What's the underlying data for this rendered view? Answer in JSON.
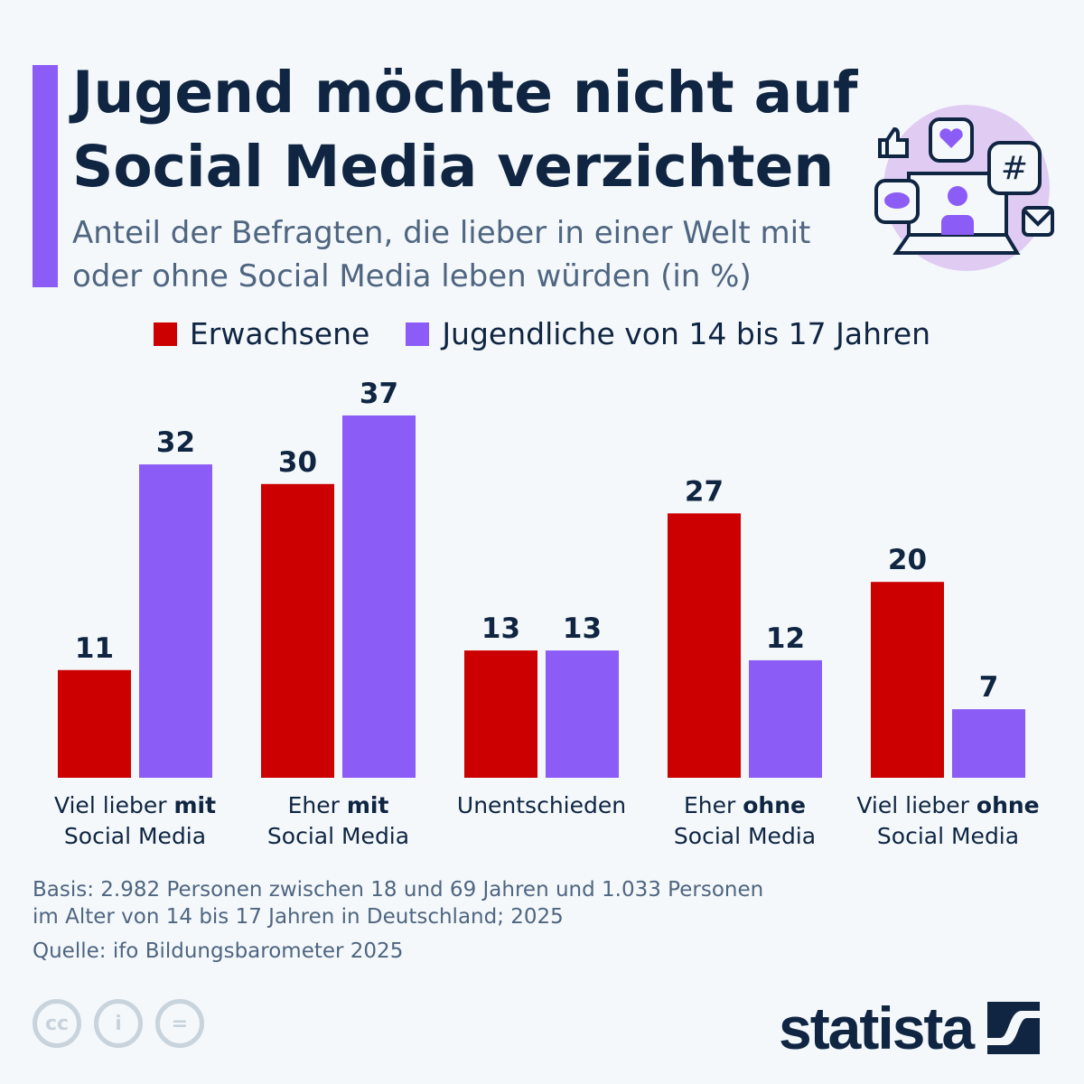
{
  "header": {
    "title": "Jugend möchte nicht auf Social Media verzichten",
    "subtitle": "Anteil der Befragten, die lieber in einer Welt mit oder ohne Social Media leben würden (in %)"
  },
  "chart_data": {
    "type": "bar",
    "categories": [
      [
        "Viel lieber ",
        "mit",
        "Social Media"
      ],
      [
        "Eher ",
        "mit",
        "Social Media"
      ],
      [
        "Unentschieden",
        "",
        ""
      ],
      [
        "Eher ",
        "ohne",
        "Social Media"
      ],
      [
        "Viel lieber ",
        "ohne",
        "Social Media"
      ]
    ],
    "series": [
      {
        "name": "Erwachsene",
        "color": "#cc0000",
        "values": [
          11,
          30,
          13,
          27,
          20
        ]
      },
      {
        "name": "Jugendliche von 14 bis 17 Jahren",
        "color": "#8b5cf6",
        "values": [
          32,
          37,
          13,
          12,
          7
        ]
      }
    ],
    "ylim": [
      0,
      37
    ],
    "grid": false,
    "legend": "top"
  },
  "footer": {
    "notes_line1": "Basis: 2.982 Personen zwischen 18 und 69 Jahren und 1.033 Personen",
    "notes_line2": "im Alter von 14 bis 17 Jahren in Deutschland; 2025",
    "source": "Quelle: ifo Bildungsbarometer 2025",
    "cc": [
      "cc",
      "i",
      "="
    ],
    "logo": "statista"
  }
}
